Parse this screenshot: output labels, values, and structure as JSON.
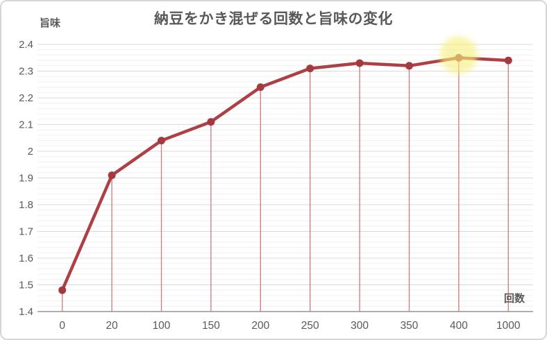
{
  "chart_data": {
    "type": "line",
    "title": "納豆をかき混ぜる回数と旨味の変化",
    "xlabel": "回数",
    "ylabel": "旨味",
    "categories": [
      "0",
      "20",
      "100",
      "150",
      "200",
      "250",
      "300",
      "350",
      "400",
      "1000"
    ],
    "series": [
      {
        "name": "旨味",
        "values": [
          1.48,
          1.91,
          2.04,
          2.11,
          2.24,
          2.31,
          2.33,
          2.32,
          2.35,
          2.34
        ]
      }
    ],
    "ylim": [
      1.4,
      2.4
    ],
    "y_tick_labels": [
      "1.4",
      "1.5",
      "1.6",
      "1.7",
      "1.8",
      "1.9",
      "2",
      "2.1",
      "2.2",
      "2.3",
      "2.4"
    ],
    "y_major_step": 0.1,
    "y_minor_step": 0.02,
    "grid": "horizontal major and minor gridlines, no vertical gridlines",
    "legend_position": "none",
    "drop_lines": "vertical red drop line from each data point to x axis",
    "highlight": {
      "category": "400",
      "index": 8,
      "color": "#f7f07e"
    },
    "colors": {
      "line": "#ae4045",
      "marker": "#a43a3f",
      "drop_line": "#c97b7d",
      "axis_line": "#aeaeae",
      "major_grid": "#d9d9d9",
      "minor_grid": "#f0f0f0",
      "text": "#595959",
      "frame_border": "#d6d6d6"
    }
  }
}
